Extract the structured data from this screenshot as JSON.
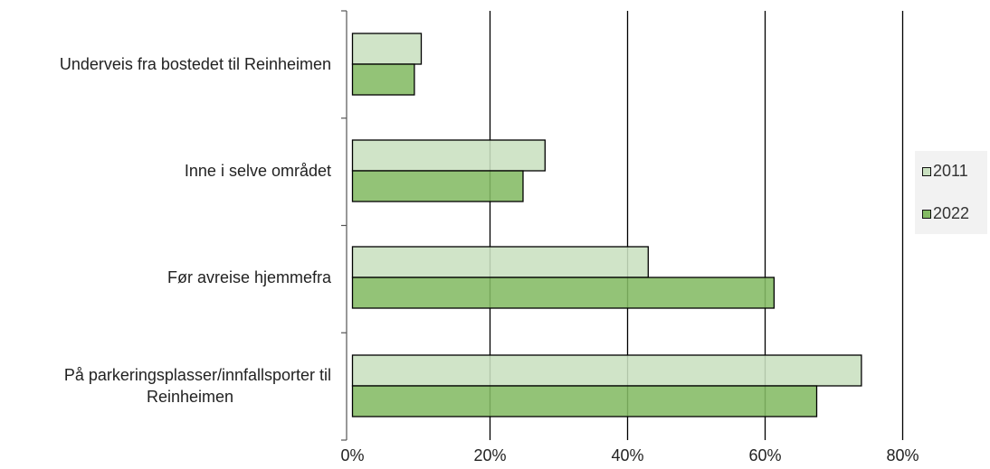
{
  "chart_data": {
    "type": "bar",
    "orientation": "horizontal",
    "title": "",
    "xlabel": "",
    "ylabel": "",
    "categories": [
      "Underveis fra bostedet til Reinheimen",
      "Inne i selve området",
      "Før avreise hjemmefra",
      "På parkeringsplasser/innfallsporter til Reinheimen"
    ],
    "category_label_lines": [
      [
        "Underveis fra bostedet til Reinheimen"
      ],
      [
        "Inne i selve området"
      ],
      [
        "Før avreise hjemmefra"
      ],
      [
        "På parkeringsplasser/innfallsporter til",
        "Reinheimen"
      ]
    ],
    "series": [
      {
        "name": "2011",
        "color": "#c9e0c0",
        "values": [
          10,
          28,
          43,
          74
        ]
      },
      {
        "name": "2022",
        "color": "#84bb64",
        "values": [
          9,
          24.8,
          61.3,
          67.5
        ]
      }
    ],
    "xlim": [
      0,
      80
    ],
    "xticks": [
      "0%",
      "20%",
      "40%",
      "60%",
      "80%"
    ],
    "grid": true,
    "legend_position": "right"
  }
}
